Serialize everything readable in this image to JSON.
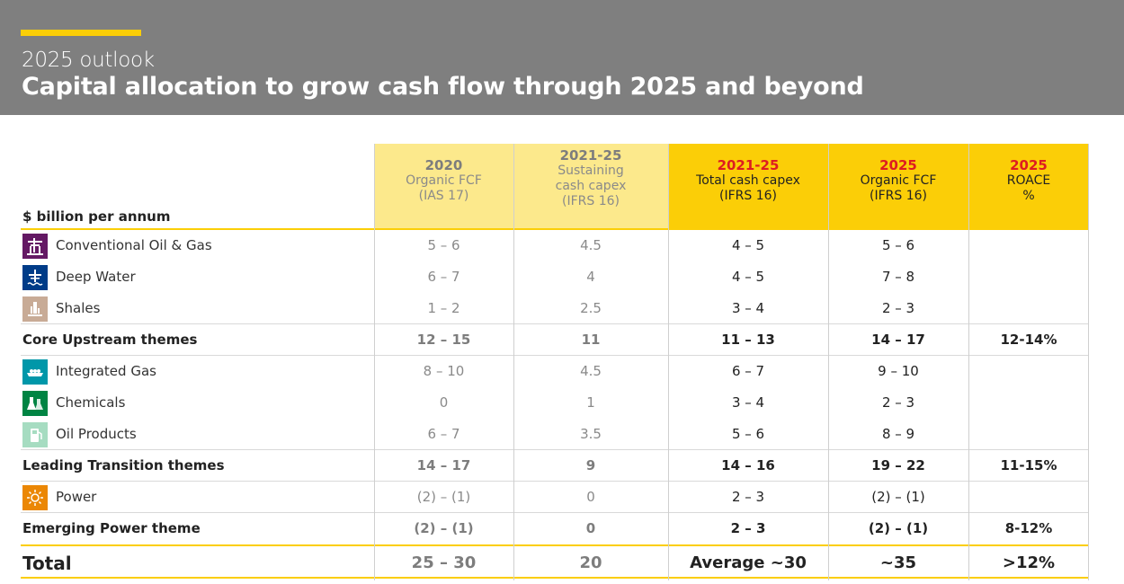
{
  "header": {
    "subtitle": "2025 outlook",
    "title": "Capital allocation to grow cash flow through 2025 and beyond"
  },
  "colors": {
    "header_bg": "#7f7f7f",
    "accent": "#fbce07",
    "pale": "#fce98c",
    "red": "#dd1d21"
  },
  "table": {
    "unit_label": "$ billion per annum",
    "columns": [
      {
        "year": "2020",
        "line1": "Organic FCF",
        "line2": "(IAS 17)",
        "line3": ""
      },
      {
        "year": "2021-25",
        "line1": "Sustaining",
        "line2": "cash capex",
        "line3": "(IFRS 16)"
      },
      {
        "year": "2021-25",
        "line1": "Total cash capex",
        "line2": "(IFRS 16)",
        "line3": ""
      },
      {
        "year": "2025",
        "line1": "Organic FCF",
        "line2": "(IFRS 16)",
        "line3": ""
      },
      {
        "year": "2025",
        "line1": "ROACE",
        "line2": "%",
        "line3": ""
      }
    ],
    "rows": [
      {
        "label": "Conventional Oil & Gas",
        "icon": "oil-platform-icon",
        "values": [
          "5 – 6",
          "4.5",
          "4 – 5",
          "5 – 6",
          ""
        ]
      },
      {
        "label": "Deep Water",
        "icon": "deep-water-icon",
        "values": [
          "6 – 7",
          "4",
          "4 – 5",
          "7 – 8",
          ""
        ]
      },
      {
        "label": "Shales",
        "icon": "shales-icon",
        "values": [
          "1 – 2",
          "2.5",
          "3 – 4",
          "2 – 3",
          ""
        ]
      },
      {
        "label": "Core Upstream themes",
        "values": [
          "12 – 15",
          "11",
          "11 – 13",
          "14 – 17",
          "12-14%"
        ]
      },
      {
        "label": "Integrated Gas",
        "icon": "lng-ship-icon",
        "values": [
          "8 – 10",
          "4.5",
          "6 – 7",
          "9 – 10",
          ""
        ]
      },
      {
        "label": "Chemicals",
        "icon": "chemicals-flask-icon",
        "values": [
          "0",
          "1",
          "3 – 4",
          "2 – 3",
          ""
        ]
      },
      {
        "label": "Oil Products",
        "icon": "fuel-pump-icon",
        "values": [
          "6 – 7",
          "3.5",
          "5 – 6",
          "8 – 9",
          ""
        ]
      },
      {
        "label": "Leading Transition themes",
        "values": [
          "14 – 17",
          "9",
          "14 – 16",
          "19 – 22",
          "11-15%"
        ]
      },
      {
        "label": "Power",
        "icon": "sun-power-icon",
        "values": [
          "(2) – (1)",
          "0",
          "2 – 3",
          "(2) – (1)",
          ""
        ]
      },
      {
        "label": "Emerging Power theme",
        "values": [
          "(2) – (1)",
          "0",
          "2 – 3",
          "(2) – (1)",
          "8-12%"
        ]
      },
      {
        "label": "Total",
        "values": [
          "25 – 30",
          "20",
          "Average ~30",
          "~35",
          ">12%"
        ]
      }
    ]
  }
}
